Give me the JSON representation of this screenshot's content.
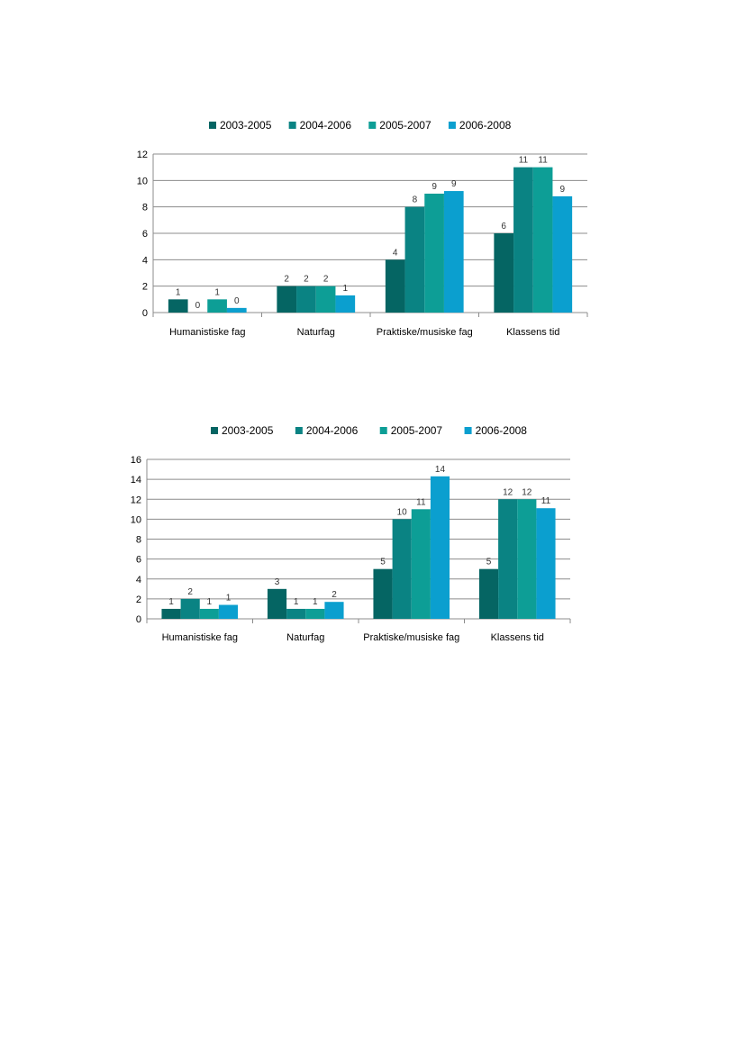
{
  "colors": [
    "#056563",
    "#0a8383",
    "#0d9e96",
    "#0b9fcf"
  ],
  "chart_data": [
    {
      "type": "bar",
      "title": "",
      "xlabel": "",
      "ylabel": "",
      "legend_position": "top",
      "grid": true,
      "ylim": [
        0,
        12
      ],
      "yticks": [
        0,
        2,
        4,
        6,
        8,
        10,
        12
      ],
      "categories": [
        "Humanistiske fag",
        "Naturfag",
        "Praktiske/musiske fag",
        "Klassens tid"
      ],
      "series": [
        {
          "name": "2003-2005",
          "values": [
            1,
            2,
            4,
            6
          ],
          "labels": [
            "1",
            "2",
            "4",
            "6"
          ]
        },
        {
          "name": "2004-2006",
          "values": [
            0,
            2,
            8,
            11
          ],
          "labels": [
            "0",
            "2",
            "8",
            "11"
          ]
        },
        {
          "name": "2005-2007",
          "values": [
            1,
            2,
            9,
            11
          ],
          "labels": [
            "1",
            "2",
            "9",
            "11"
          ]
        },
        {
          "name": "2006-2008",
          "values": [
            0.35,
            1.3,
            9.2,
            8.8
          ],
          "labels": [
            "0",
            "1",
            "9",
            "9"
          ]
        }
      ]
    },
    {
      "type": "bar",
      "title": "",
      "xlabel": "",
      "ylabel": "",
      "legend_position": "top",
      "grid": true,
      "ylim": [
        0,
        16
      ],
      "yticks": [
        0,
        2,
        4,
        6,
        8,
        10,
        12,
        14,
        16
      ],
      "categories": [
        "Humanistiske fag",
        "Naturfag",
        "Praktiske/musiske fag",
        "Klassens tid"
      ],
      "series": [
        {
          "name": "2003-2005",
          "values": [
            1,
            3,
            5,
            5
          ],
          "labels": [
            "1",
            "3",
            "5",
            "5"
          ]
        },
        {
          "name": "2004-2006",
          "values": [
            2,
            1,
            10,
            12
          ],
          "labels": [
            "2",
            "1",
            "10",
            "12"
          ]
        },
        {
          "name": "2005-2007",
          "values": [
            1,
            1,
            11,
            12
          ],
          "labels": [
            "1",
            "1",
            "11",
            "12"
          ]
        },
        {
          "name": "2006-2008",
          "values": [
            1.4,
            1.7,
            14.3,
            11.1
          ],
          "labels": [
            "1",
            "2",
            "14",
            "11"
          ]
        }
      ]
    }
  ]
}
